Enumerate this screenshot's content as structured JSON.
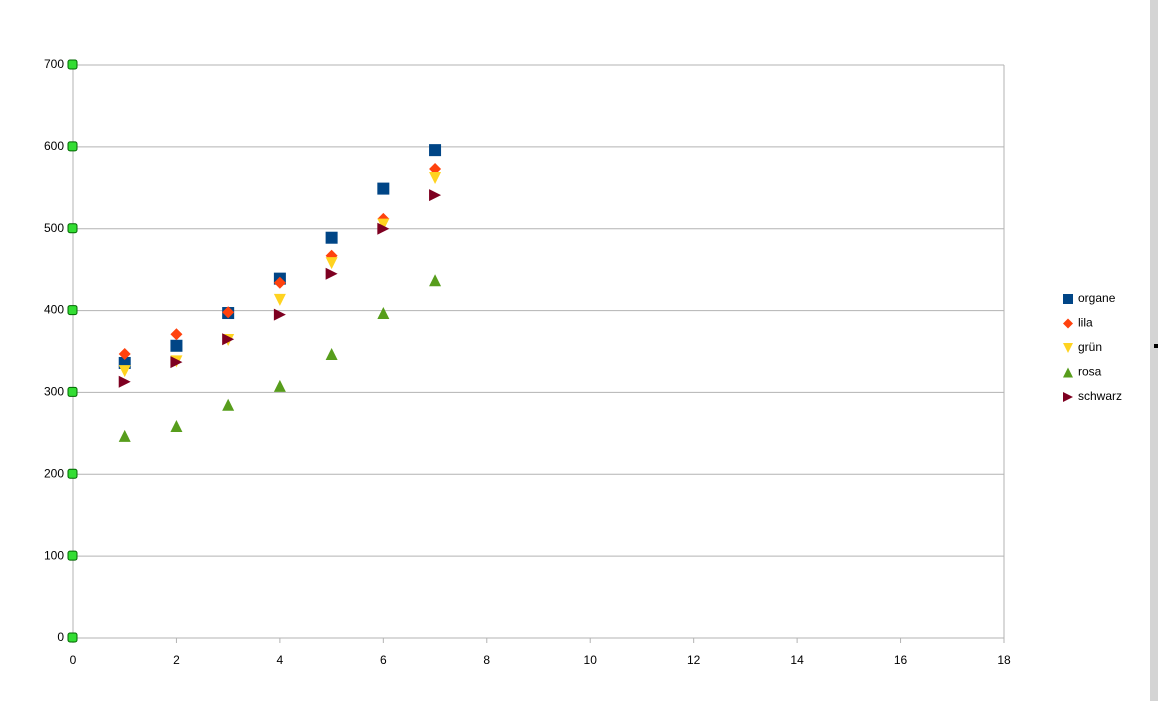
{
  "chart_data": {
    "type": "scatter",
    "x": [
      1,
      2,
      3,
      4,
      5,
      6,
      7
    ],
    "series": [
      {
        "name": "organe",
        "color": "#004586",
        "marker": "square",
        "values": [
          336,
          357,
          397,
          439,
          489,
          549,
          596
        ]
      },
      {
        "name": "lila",
        "color": "#ff420e",
        "marker": "diamond",
        "values": [
          347,
          371,
          398,
          434,
          467,
          512,
          573
        ]
      },
      {
        "name": "grün",
        "color": "#ffd320",
        "marker": "triangle-down",
        "values": [
          326,
          338,
          364,
          413,
          458,
          505,
          562
        ]
      },
      {
        "name": "rosa",
        "color": "#579d1c",
        "marker": "triangle-up",
        "values": [
          247,
          259,
          285,
          308,
          347,
          397,
          437
        ]
      },
      {
        "name": "schwarz",
        "color": "#7e0021",
        "marker": "triangle-right",
        "values": [
          313,
          337,
          365,
          395,
          445,
          500,
          541
        ]
      }
    ],
    "xlim": [
      0,
      18
    ],
    "xticks": [
      0,
      2,
      4,
      6,
      8,
      10,
      12,
      14,
      16,
      18
    ],
    "ylim": [
      0,
      700
    ],
    "yticks": [
      0,
      100,
      200,
      300,
      400,
      500,
      600,
      700
    ],
    "grid": true,
    "legend": "right"
  }
}
